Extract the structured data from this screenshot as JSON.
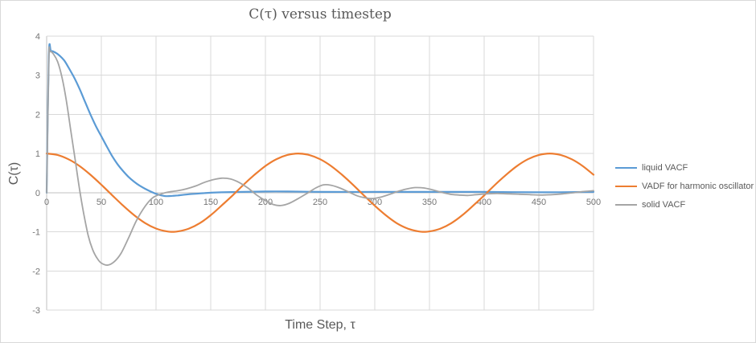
{
  "styles": {
    "background": "#FFFFFF",
    "border_color": "#D9D9D9",
    "gridline_color": "#D9D9D9",
    "axis_line_color": "#C0C0C0",
    "tick_label_color": "#757575",
    "title_color": "#595959"
  },
  "chart_data": {
    "type": "line",
    "title": "C(τ) versus timestep",
    "xlabel": "Time Step, τ",
    "ylabel": "C(τ)",
    "xlim": [
      0,
      500
    ],
    "ylim": [
      -3,
      4
    ],
    "x_ticks": [
      0,
      50,
      100,
      150,
      200,
      250,
      300,
      350,
      400,
      450,
      500
    ],
    "y_ticks": [
      4,
      3,
      2,
      1,
      0,
      -1,
      -2,
      -3
    ],
    "grid": true,
    "legend_position": "right",
    "series": [
      {
        "name": "liquid VACF",
        "color": "#5B9BD5",
        "width": 2.2,
        "points": [
          [
            0,
            0
          ],
          [
            2,
            3.5
          ],
          [
            4,
            3.62
          ],
          [
            8,
            3.58
          ],
          [
            12,
            3.5
          ],
          [
            16,
            3.38
          ],
          [
            20,
            3.2
          ],
          [
            25,
            2.95
          ],
          [
            30,
            2.66
          ],
          [
            35,
            2.33
          ],
          [
            40,
            2.0
          ],
          [
            45,
            1.7
          ],
          [
            50,
            1.44
          ],
          [
            55,
            1.18
          ],
          [
            60,
            0.93
          ],
          [
            65,
            0.72
          ],
          [
            70,
            0.55
          ],
          [
            75,
            0.4
          ],
          [
            80,
            0.28
          ],
          [
            85,
            0.18
          ],
          [
            90,
            0.1
          ],
          [
            95,
            0.03
          ],
          [
            100,
            -0.03
          ],
          [
            105,
            -0.07
          ],
          [
            110,
            -0.09
          ],
          [
            115,
            -0.08
          ],
          [
            120,
            -0.07
          ],
          [
            130,
            -0.04
          ],
          [
            140,
            -0.02
          ],
          [
            150,
            0.0
          ],
          [
            160,
            0.01
          ],
          [
            180,
            0.02
          ],
          [
            200,
            0.03
          ],
          [
            220,
            0.03
          ],
          [
            250,
            0.02
          ],
          [
            300,
            0.02
          ],
          [
            350,
            0.02
          ],
          [
            400,
            0.02
          ],
          [
            450,
            0.01
          ],
          [
            500,
            0.02
          ]
        ]
      },
      {
        "name": "VADF for harmonic oscillator",
        "color": "#ED7D31",
        "width": 2.2,
        "points": [
          [
            0,
            1
          ],
          [
            10,
            0.963
          ],
          [
            20,
            0.854
          ],
          [
            30,
            0.682
          ],
          [
            40,
            0.459
          ],
          [
            50,
            0.203
          ],
          [
            60,
            -0.068
          ],
          [
            70,
            -0.334
          ],
          [
            80,
            -0.575
          ],
          [
            90,
            -0.777
          ],
          [
            100,
            -0.917
          ],
          [
            110,
            -0.991
          ],
          [
            115,
            -1.0
          ],
          [
            120,
            -0.991
          ],
          [
            130,
            -0.918
          ],
          [
            140,
            -0.779
          ],
          [
            150,
            -0.576
          ],
          [
            160,
            -0.328
          ],
          [
            170,
            -0.071
          ],
          [
            180,
            0.203
          ],
          [
            190,
            0.456
          ],
          [
            200,
            0.682
          ],
          [
            210,
            0.856
          ],
          [
            220,
            0.963
          ],
          [
            230,
            1.0
          ],
          [
            240,
            0.963
          ],
          [
            250,
            0.855
          ],
          [
            260,
            0.683
          ],
          [
            270,
            0.458
          ],
          [
            280,
            0.204
          ],
          [
            290,
            -0.068
          ],
          [
            300,
            -0.333
          ],
          [
            310,
            -0.575
          ],
          [
            320,
            -0.778
          ],
          [
            330,
            -0.917
          ],
          [
            340,
            -0.991
          ],
          [
            345,
            -1.0
          ],
          [
            350,
            -0.991
          ],
          [
            360,
            -0.918
          ],
          [
            370,
            -0.779
          ],
          [
            380,
            -0.576
          ],
          [
            390,
            -0.329
          ],
          [
            400,
            -0.071
          ],
          [
            410,
            0.202
          ],
          [
            420,
            0.455
          ],
          [
            430,
            0.681
          ],
          [
            440,
            0.855
          ],
          [
            450,
            0.963
          ],
          [
            460,
            1.0
          ],
          [
            470,
            0.963
          ],
          [
            480,
            0.856
          ],
          [
            490,
            0.683
          ],
          [
            500,
            0.459
          ]
        ]
      },
      {
        "name": "solid VACF",
        "color": "#A5A5A5",
        "width": 1.8,
        "points": [
          [
            0,
            0
          ],
          [
            2,
            3.4
          ],
          [
            3,
            3.6
          ],
          [
            6,
            3.55
          ],
          [
            10,
            3.35
          ],
          [
            14,
            2.95
          ],
          [
            18,
            2.35
          ],
          [
            22,
            1.6
          ],
          [
            26,
            0.85
          ],
          [
            30,
            0.1
          ],
          [
            34,
            -0.55
          ],
          [
            38,
            -1.1
          ],
          [
            42,
            -1.45
          ],
          [
            46,
            -1.67
          ],
          [
            50,
            -1.8
          ],
          [
            56,
            -1.85
          ],
          [
            62,
            -1.76
          ],
          [
            68,
            -1.55
          ],
          [
            75,
            -1.15
          ],
          [
            82,
            -0.72
          ],
          [
            90,
            -0.35
          ],
          [
            97,
            -0.13
          ],
          [
            105,
            -0.03
          ],
          [
            112,
            0.02
          ],
          [
            120,
            0.05
          ],
          [
            128,
            0.1
          ],
          [
            136,
            0.17
          ],
          [
            144,
            0.26
          ],
          [
            152,
            0.33
          ],
          [
            160,
            0.37
          ],
          [
            168,
            0.35
          ],
          [
            176,
            0.26
          ],
          [
            184,
            0.12
          ],
          [
            192,
            -0.06
          ],
          [
            200,
            -0.2
          ],
          [
            207,
            -0.3
          ],
          [
            214,
            -0.33
          ],
          [
            222,
            -0.27
          ],
          [
            230,
            -0.15
          ],
          [
            238,
            -0.02
          ],
          [
            246,
            0.12
          ],
          [
            253,
            0.2
          ],
          [
            260,
            0.19
          ],
          [
            268,
            0.12
          ],
          [
            276,
            0.02
          ],
          [
            284,
            -0.08
          ],
          [
            291,
            -0.13
          ],
          [
            298,
            -0.15
          ],
          [
            306,
            -0.11
          ],
          [
            314,
            -0.04
          ],
          [
            322,
            0.04
          ],
          [
            330,
            0.1
          ],
          [
            337,
            0.13
          ],
          [
            345,
            0.12
          ],
          [
            353,
            0.07
          ],
          [
            361,
            0.01
          ],
          [
            369,
            -0.04
          ],
          [
            377,
            -0.06
          ],
          [
            385,
            -0.07
          ],
          [
            393,
            -0.05
          ],
          [
            402,
            -0.03
          ],
          [
            412,
            -0.02
          ],
          [
            422,
            -0.03
          ],
          [
            432,
            -0.04
          ],
          [
            442,
            -0.05
          ],
          [
            452,
            -0.06
          ],
          [
            462,
            -0.05
          ],
          [
            472,
            -0.03
          ],
          [
            482,
            0.0
          ],
          [
            491,
            0.03
          ],
          [
            500,
            0.05
          ]
        ]
      }
    ]
  }
}
